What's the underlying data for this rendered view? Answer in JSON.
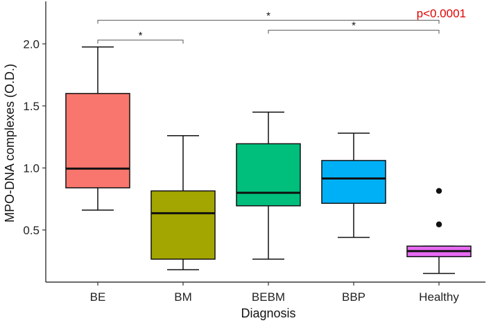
{
  "chart_data": {
    "type": "box",
    "title": "",
    "xlabel": "Diagnosis",
    "ylabel": "MPO-DNA complexes (O.D.)",
    "ylim": [
      0.08,
      2.32
    ],
    "yticks": [
      "0.5",
      "1.0",
      "1.5",
      "2.0"
    ],
    "ytick_values": [
      0.5,
      1.0,
      1.5,
      2.0
    ],
    "categories": [
      "BE",
      "BM",
      "BEBM",
      "BBP",
      "Healthy"
    ],
    "boxes": [
      {
        "category": "BE",
        "whisker_low": 0.66,
        "q1": 0.84,
        "median": 0.995,
        "q3": 1.6,
        "whisker_high": 1.975,
        "color": "#F8766D",
        "outliers": []
      },
      {
        "category": "BM",
        "whisker_low": 0.18,
        "q1": 0.265,
        "median": 0.635,
        "q3": 0.815,
        "whisker_high": 1.26,
        "color": "#A3A500",
        "outliers": []
      },
      {
        "category": "BEBM",
        "whisker_low": 0.265,
        "q1": 0.695,
        "median": 0.8,
        "q3": 1.195,
        "whisker_high": 1.45,
        "color": "#00BF7D",
        "outliers": []
      },
      {
        "category": "BBP",
        "whisker_low": 0.44,
        "q1": 0.715,
        "median": 0.915,
        "q3": 1.06,
        "whisker_high": 1.28,
        "color": "#00B0F6",
        "outliers": []
      },
      {
        "category": "Healthy",
        "whisker_low": 0.15,
        "q1": 0.285,
        "median": 0.33,
        "q3": 0.37,
        "whisker_high": 0.37,
        "color": "#E76BF3",
        "outliers": [
          0.545,
          0.815
        ]
      }
    ],
    "comparisons": [
      {
        "from": "BE",
        "to": "Healthy",
        "label": "*",
        "y": 2.19
      },
      {
        "from": "BE",
        "to": "BM",
        "label": "*",
        "y": 2.03
      },
      {
        "from": "BEBM",
        "to": "Healthy",
        "label": "*",
        "y": 2.11
      }
    ],
    "annotation": {
      "text": "p<0.0001",
      "color": "#E00000"
    }
  }
}
